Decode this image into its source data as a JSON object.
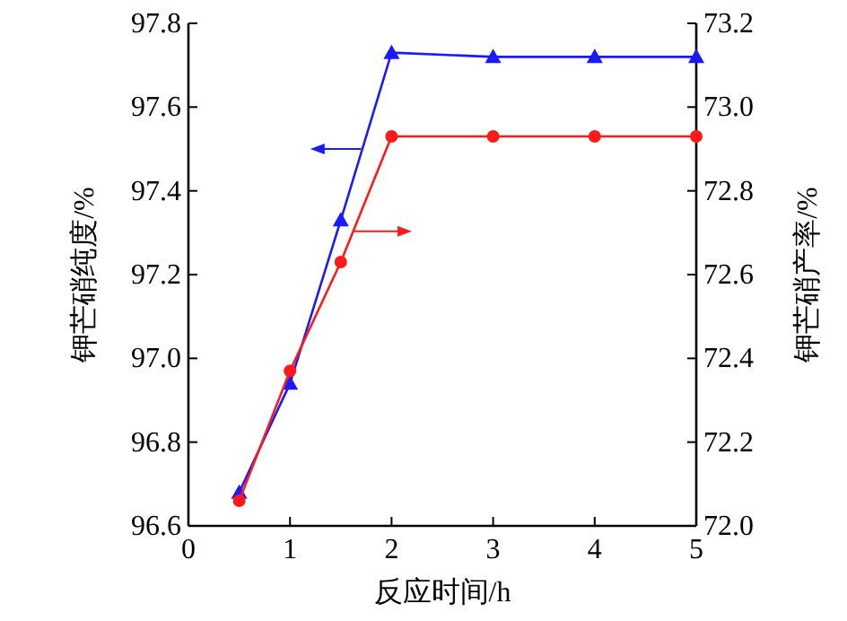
{
  "chart_data": {
    "type": "line",
    "xlabel": "反应时间/h",
    "ylabel": "钾芒硝纯度/%",
    "y2label": "钾芒硝产率/%",
    "xlim": [
      0,
      5
    ],
    "xticks": [
      0,
      1,
      2,
      3,
      4,
      5
    ],
    "ylim": [
      96.6,
      97.8
    ],
    "yticks": [
      {
        "value": 96.6,
        "label": "96.6"
      },
      {
        "value": 96.8,
        "label": "96.8"
      },
      {
        "value": 97,
        "label": "97.0"
      },
      {
        "value": 97.2,
        "label": "97.2"
      },
      {
        "value": 97.4,
        "label": "97.4"
      },
      {
        "value": 97.6,
        "label": "97.6"
      },
      {
        "value": 97.8,
        "label": "97.8"
      }
    ],
    "y2lim": [
      72,
      73.2
    ],
    "y2ticks": [
      {
        "value": 72,
        "label": "72.0"
      },
      {
        "value": 72.2,
        "label": "72.2"
      },
      {
        "value": 72.4,
        "label": "72.4"
      },
      {
        "value": 72.6,
        "label": "72.6"
      },
      {
        "value": 72.8,
        "label": "72.8"
      },
      {
        "value": 73,
        "label": "73.0"
      },
      {
        "value": 73.2,
        "label": "73.2"
      }
    ],
    "grid": false,
    "series": [
      {
        "color": "#1a1aff",
        "marker": "triangle",
        "x": [
          0.5,
          1,
          1.5,
          2,
          3,
          4,
          5
        ],
        "values": [
          96.68,
          96.94,
          97.33,
          97.73,
          97.72,
          97.72,
          97.72
        ]
      },
      {
        "color": "#ff1a1a",
        "marker": "circle",
        "axis": "y2",
        "x": [
          0.5,
          1,
          1.5,
          2,
          3,
          4,
          5
        ],
        "values": [
          72.06,
          72.37,
          72.63,
          72.93,
          72.93,
          72.93,
          72.93
        ]
      }
    ]
  }
}
